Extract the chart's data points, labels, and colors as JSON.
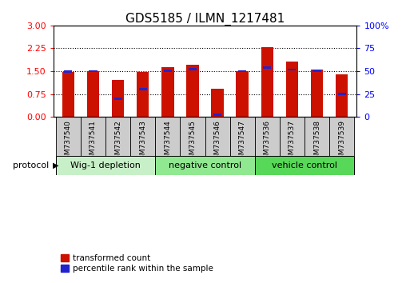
{
  "title": "GDS5185 / ILMN_1217481",
  "samples": [
    "GSM737540",
    "GSM737541",
    "GSM737542",
    "GSM737543",
    "GSM737544",
    "GSM737545",
    "GSM737546",
    "GSM737547",
    "GSM737536",
    "GSM737537",
    "GSM737538",
    "GSM737539"
  ],
  "red_values": [
    1.48,
    1.5,
    1.22,
    1.47,
    1.62,
    1.72,
    0.92,
    1.5,
    2.3,
    1.82,
    1.55,
    1.4
  ],
  "blue_values": [
    1.48,
    1.5,
    0.6,
    0.9,
    1.52,
    1.57,
    0.07,
    1.5,
    1.62,
    1.55,
    1.52,
    0.75
  ],
  "ylim_left": [
    0,
    3
  ],
  "ylim_right": [
    0,
    100
  ],
  "yticks_left": [
    0,
    0.75,
    1.5,
    2.25,
    3
  ],
  "yticks_right": [
    0,
    25,
    50,
    75,
    100
  ],
  "yticklabels_right": [
    "0",
    "25",
    "50",
    "75",
    "100%"
  ],
  "groups": [
    {
      "label": "Wig-1 depletion",
      "start": 0,
      "end": 4,
      "color": "#c8f0c8"
    },
    {
      "label": "negative control",
      "start": 4,
      "end": 8,
      "color": "#90e890"
    },
    {
      "label": "vehicle control",
      "start": 8,
      "end": 12,
      "color": "#58d858"
    }
  ],
  "bar_width": 0.5,
  "red_color": "#cc1100",
  "blue_color": "#2222cc",
  "background_color": "#ffffff",
  "gray_box_color": "#cccccc",
  "protocol_label": "protocol",
  "legend1": "transformed count",
  "legend2": "percentile rank within the sample",
  "title_fontsize": 11,
  "tick_fontsize": 8,
  "dotted_gridlines": [
    0.75,
    1.5,
    2.25
  ]
}
